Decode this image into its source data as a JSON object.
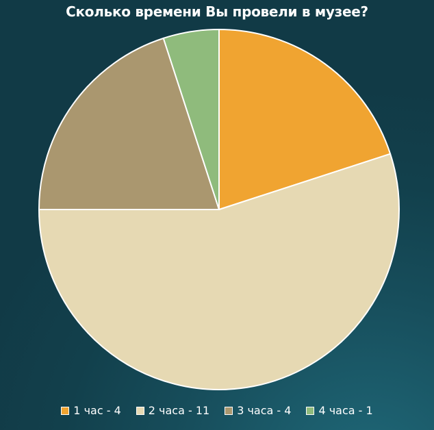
{
  "chart_data": {
    "type": "pie",
    "title": "Сколько времени Вы провели в музее?",
    "categories": [
      "1 час",
      "2 часа",
      "3 часа",
      "4 часа"
    ],
    "values": [
      4,
      11,
      4,
      1
    ],
    "colors": [
      "#f0a431",
      "#e6d9b3",
      "#aa976f",
      "#8fbb7c"
    ],
    "legend_labels": [
      "1 час - 4",
      "2 часа - 11",
      "3 часа - 4",
      "4 часа - 1"
    ],
    "legend_position": "bottom"
  }
}
